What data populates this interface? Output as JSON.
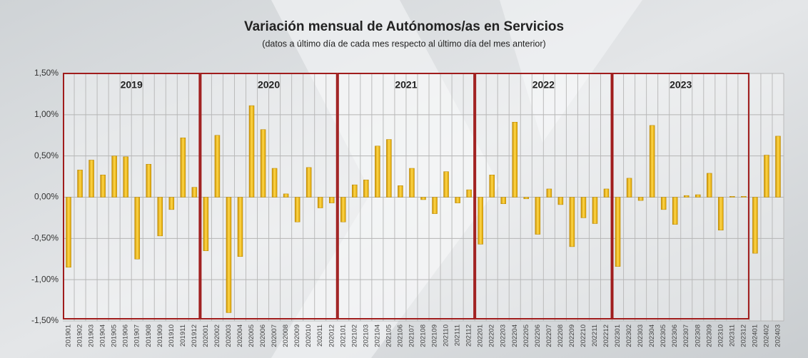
{
  "chart_data": {
    "type": "bar",
    "title": "Variación mensual de Autónomos/as en Servicios",
    "subtitle": "(datos a último día de cada mes respecto al último día del mes anterior)",
    "categories": [
      "201901",
      "201902",
      "201903",
      "201904",
      "201905",
      "201906",
      "201907",
      "201908",
      "201909",
      "201910",
      "201911",
      "201912",
      "202001",
      "202002",
      "202003",
      "202004",
      "202005",
      "202006",
      "202007",
      "202008",
      "202009",
      "202010",
      "202011",
      "202012",
      "202101",
      "202102",
      "202103",
      "202104",
      "202105",
      "202106",
      "202107",
      "202108",
      "202109",
      "202110",
      "202111",
      "202112",
      "202201",
      "202202",
      "202203",
      "202204",
      "202205",
      "202206",
      "202207",
      "202208",
      "202209",
      "202210",
      "202211",
      "202212",
      "202301",
      "202302",
      "202303",
      "202304",
      "202305",
      "202306",
      "202307",
      "202308",
      "202309",
      "202310",
      "202311",
      "202312",
      "202401",
      "202402",
      "202403"
    ],
    "values": [
      -0.85,
      0.33,
      0.45,
      0.27,
      0.5,
      0.49,
      -0.75,
      0.4,
      -0.47,
      -0.15,
      0.72,
      0.12,
      -0.65,
      0.75,
      -1.4,
      -0.72,
      1.11,
      0.82,
      0.35,
      0.04,
      -0.3,
      0.36,
      -0.13,
      -0.07,
      -0.3,
      0.15,
      0.21,
      0.62,
      0.7,
      0.14,
      0.35,
      -0.03,
      -0.2,
      0.31,
      -0.07,
      0.09,
      -0.57,
      0.27,
      -0.08,
      0.91,
      -0.02,
      -0.45,
      0.1,
      -0.09,
      -0.6,
      -0.25,
      -0.32,
      0.1,
      -0.84,
      0.23,
      -0.04,
      0.87,
      -0.15,
      -0.33,
      0.02,
      0.03,
      0.29,
      -0.4,
      0.01,
      0.01,
      -0.68,
      0.51,
      0.74
    ],
    "color": "#f2b705",
    "year_groups": [
      "2019",
      "2020",
      "2021",
      "2022",
      "2023"
    ],
    "group_color": "#a01c1c",
    "ylim": [
      -1.5,
      1.5
    ],
    "yticks": [
      {
        "value": -1.5,
        "label": "-1,50%"
      },
      {
        "value": -1,
        "label": "-1,00%"
      },
      {
        "value": -0.5,
        "label": "-0,50%"
      },
      {
        "value": 0,
        "label": "0,00%"
      },
      {
        "value": 0.5,
        "label": "0,50%"
      },
      {
        "value": 1,
        "label": "1,00%"
      },
      {
        "value": 1.5,
        "label": "1,50%"
      }
    ],
    "grid": true
  }
}
